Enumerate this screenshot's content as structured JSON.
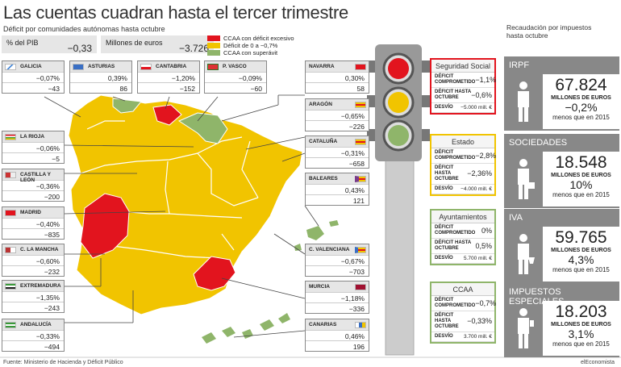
{
  "title": "Las cuentas cuadran hasta el tercer trimestre",
  "subtitle": "Déficit por comunidades autónomas hasta octubre",
  "header": {
    "pct_label": "% del PIB",
    "pct_value": "−0,33",
    "eur_label": "Millones de euros",
    "eur_value": "−3.726"
  },
  "legend": [
    {
      "label": "CCAA con déficit excesivo",
      "color": "#e2141e"
    },
    {
      "label": "Déficit de 0 a −0,7%",
      "color": "#f1c400"
    },
    {
      "label": "CCAA con superávit",
      "color": "#8fb56a"
    }
  ],
  "regions": {
    "galicia": {
      "name": "GALICIA",
      "pct": "−0,07%",
      "eur": "−43"
    },
    "asturias": {
      "name": "ASTURIAS",
      "pct": "0,39%",
      "eur": "86"
    },
    "cantabria": {
      "name": "CANTABRIA",
      "pct": "−1,20%",
      "eur": "−152"
    },
    "pvasco": {
      "name": "P. VASCO",
      "pct": "−0,09%",
      "eur": "−60"
    },
    "navarra": {
      "name": "NAVARRA",
      "pct": "0,30%",
      "eur": "58"
    },
    "aragon": {
      "name": "ARAGÓN",
      "pct": "−0,65%",
      "eur": "−226"
    },
    "cataluna": {
      "name": "CATALUÑA",
      "pct": "−0,31%",
      "eur": "−658"
    },
    "baleares": {
      "name": "BALEARES",
      "pct": "0,43%",
      "eur": "121"
    },
    "larioja": {
      "name": "LA RIOJA",
      "pct": "−0,06%",
      "eur": "−5"
    },
    "cyl": {
      "name": "CASTILLA Y LEÓN",
      "pct": "−0,36%",
      "eur": "−200"
    },
    "madrid": {
      "name": "MADRID",
      "pct": "−0,40%",
      "eur": "−835"
    },
    "clm": {
      "name": "C. LA MANCHA",
      "pct": "−0,60%",
      "eur": "−232"
    },
    "extremadura": {
      "name": "EXTREMADURA",
      "pct": "−1,35%",
      "eur": "−243"
    },
    "andalucia": {
      "name": "ANDALUCÍA",
      "pct": "−0,33%",
      "eur": "−494"
    },
    "cvalenciana": {
      "name": "C. VALENCIANA",
      "pct": "−0,67%",
      "eur": "−703"
    },
    "murcia": {
      "name": "MURCIA",
      "pct": "−1,18%",
      "eur": "−336"
    },
    "canarias": {
      "name": "CANARIAS",
      "pct": "0,46%",
      "eur": "196"
    }
  },
  "indicators": {
    "seguridad_social": {
      "title": "Seguridad Social",
      "row1_label": "DÉFICIT COMPROMETIDO",
      "row1_value": "−1,1%",
      "row2_label": "DÉFICIT HASTA OCTUBRE",
      "row2_value": "−0,6%",
      "row3_label": "DESVÍO",
      "row3_value": "−5.000 mill. €"
    },
    "estado": {
      "title": "Estado",
      "row1_label": "DÉFICIT COMPROMETIDO",
      "row1_value": "−2,8%",
      "row2_label": "DÉFICIT HASTA OCTUBRE",
      "row2_value": "−2,36%",
      "row3_label": "DESVÍO",
      "row3_value": "−4.000 mill. €"
    },
    "ayuntamientos": {
      "title": "Ayuntamientos",
      "row1_label": "DÉFICIT COMPROMETIDO",
      "row1_value": "0%",
      "row2_label": "DÉFICIT HASTA OCTUBRE",
      "row2_value": "0,5%",
      "row3_label": "DESVÍO",
      "row3_value": "5.700 mill. €"
    },
    "ccaa": {
      "title": "CCAA",
      "row1_label": "DÉFICIT COMPROMETIDO",
      "row1_value": "−0,7%",
      "row2_label": "DÉFICIT HASTA OCTUBRE",
      "row2_value": "−0,33%",
      "row3_label": "DESVÍO",
      "row3_value": "3.700 mill. €"
    }
  },
  "recaudacion": {
    "title": "Recaudación por impuestos hasta octubre",
    "items": [
      {
        "name": "IRPF",
        "amount": "67.824",
        "unit": "MILLONES DE EUROS",
        "pct": "−0,2%",
        "note": "menos que en 2015"
      },
      {
        "name": "SOCIEDADES",
        "amount": "18.548",
        "unit": "MILLONES DE EUROS",
        "pct": "10%",
        "note": "menos que en 2015"
      },
      {
        "name": "IVA",
        "amount": "59.765",
        "unit": "MILLONES DE EUROS",
        "pct": "4,3%",
        "note": "menos que en 2015"
      },
      {
        "name": "IMPUESTOS ESPECIALES",
        "amount": "18.203",
        "unit": "MILLONES DE EUROS",
        "pct": "3,1%",
        "note": "menos que en 2015"
      }
    ]
  },
  "footer": {
    "source": "Fuente: Ministerio de Hacienda y Déficit Público",
    "credit": "elEconomista"
  }
}
